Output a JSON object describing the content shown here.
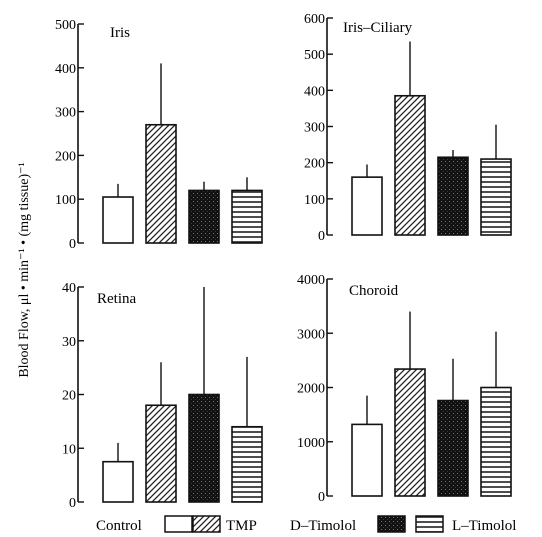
{
  "figure": {
    "ylabel": "Blood Flow, μl • min⁻¹ • (mg tissue)⁻¹"
  },
  "legend": {
    "items": [
      {
        "label": "Control",
        "pattern": "empty"
      },
      {
        "label": "TMP",
        "pattern": "diagonal"
      },
      {
        "label": "D–Timolol",
        "pattern": "dots"
      },
      {
        "label": "L–Timolol",
        "pattern": "horizontal"
      }
    ]
  },
  "chart_data": [
    {
      "type": "bar",
      "title": "Iris",
      "categories": [
        "Control",
        "TMP",
        "D–Timolol",
        "L–Timolol"
      ],
      "values": [
        105,
        270,
        120,
        120
      ],
      "error_upper": [
        135,
        410,
        140,
        150
      ],
      "ylim": [
        0,
        500
      ],
      "yticks": [
        0,
        100,
        200,
        300,
        400,
        500
      ],
      "ytick_labels": [
        "0",
        "100",
        "200",
        "300",
        "400",
        "500"
      ]
    },
    {
      "type": "bar",
      "title": "Iris–Ciliary",
      "categories": [
        "Control",
        "TMP",
        "D–Timolol",
        "L–Timolol"
      ],
      "values": [
        160,
        385,
        215,
        210
      ],
      "error_upper": [
        195,
        535,
        235,
        305
      ],
      "ylim": [
        0,
        600
      ],
      "yticks": [
        0,
        100,
        200,
        300,
        400,
        500,
        600
      ],
      "ytick_labels": [
        "0",
        "100",
        "200",
        "300",
        "400",
        "500",
        "600"
      ]
    },
    {
      "type": "bar",
      "title": "Retina",
      "categories": [
        "Control",
        "TMP",
        "D–Timolol",
        "L–Timolol"
      ],
      "values": [
        7.5,
        18,
        20,
        14
      ],
      "error_upper": [
        11,
        26,
        40,
        27
      ],
      "ylim": [
        0,
        40
      ],
      "yticks": [
        0,
        10,
        20,
        30,
        40
      ],
      "ytick_labels": [
        "0",
        "10",
        "20",
        "30",
        "40"
      ]
    },
    {
      "type": "bar",
      "title": "Choroid",
      "categories": [
        "Control",
        "TMP",
        "D–Timolol",
        "L–Timolol"
      ],
      "values": [
        1320,
        2340,
        1760,
        2000
      ],
      "error_upper": [
        1850,
        3400,
        2530,
        3030
      ],
      "ylim": [
        0,
        4000
      ],
      "yticks": [
        0,
        1000,
        2000,
        3000,
        4000
      ],
      "ytick_labels": [
        "0",
        "1000",
        "2000",
        "3000",
        "4000"
      ]
    }
  ]
}
